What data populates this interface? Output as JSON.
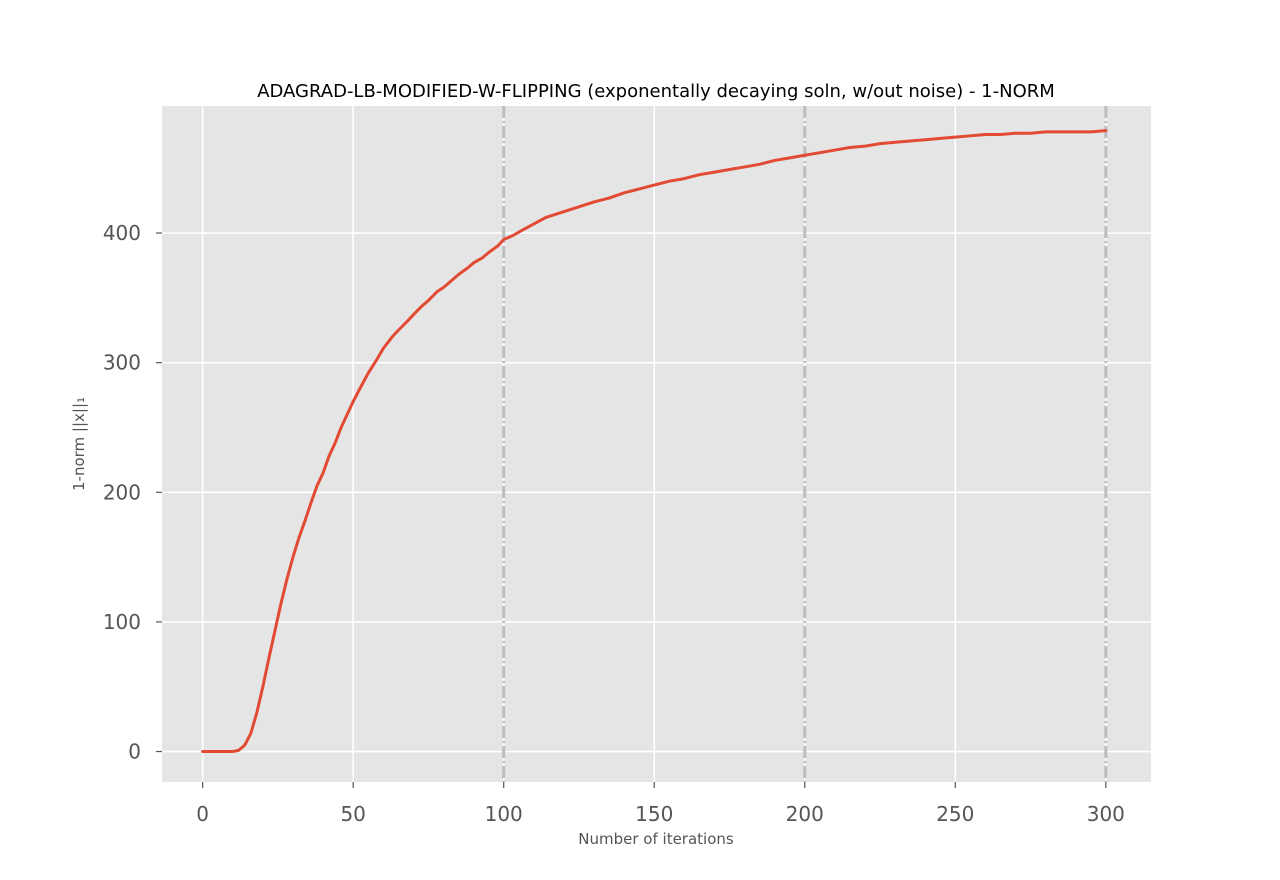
{
  "colors": {
    "plot_background": "#e5e5e5",
    "grid": "#ffffff",
    "series_line": "#e24a33",
    "vline": "#bdbdbd",
    "tick": "#555555"
  },
  "chart_data": {
    "type": "line",
    "title": "ADAGRAD-LB-MODIFIED-W-FLIPPING (exponentally decaying soln, w/out noise) - 1-NORM",
    "xlabel": "Number of iterations",
    "ylabel": "1-norm ||x||₁",
    "xlim": [
      -13.5,
      315
    ],
    "ylim": [
      -23.5,
      498
    ],
    "xticks": [
      0,
      50,
      100,
      150,
      200,
      250,
      300
    ],
    "xtick_labels": [
      "0",
      "50",
      "100",
      "150",
      "200",
      "250",
      "300"
    ],
    "yticks": [
      0,
      100,
      200,
      300,
      400
    ],
    "ytick_labels": [
      "0",
      "100",
      "200",
      "300",
      "400"
    ],
    "grid": true,
    "vertical_lines": [
      100,
      200,
      300
    ],
    "series": [
      {
        "x": [
          0,
          5,
          10,
          12,
          14,
          16,
          18,
          20,
          22,
          24,
          26,
          28,
          30,
          32,
          34,
          36,
          38,
          40,
          42,
          44,
          46,
          48,
          50,
          52,
          55,
          58,
          60,
          63,
          65,
          68,
          70,
          73,
          75,
          78,
          80,
          83,
          85,
          88,
          90,
          93,
          95,
          98,
          100,
          103,
          106,
          110,
          114,
          118,
          122,
          126,
          130,
          135,
          140,
          145,
          150,
          155,
          160,
          165,
          170,
          175,
          180,
          185,
          190,
          195,
          200,
          205,
          210,
          215,
          220,
          225,
          230,
          235,
          240,
          245,
          250,
          255,
          260,
          265,
          270,
          275,
          280,
          285,
          290,
          295,
          300
        ],
        "values": [
          0,
          0,
          0,
          1,
          5,
          14,
          30,
          50,
          72,
          93,
          114,
          133,
          150,
          165,
          178,
          192,
          205,
          215,
          228,
          238,
          250,
          260,
          270,
          279,
          292,
          303,
          311,
          320,
          325,
          332,
          337,
          344,
          348,
          355,
          358,
          364,
          368,
          373,
          377,
          381,
          385,
          390,
          395,
          398,
          402,
          407,
          412,
          415,
          418,
          421,
          424,
          427,
          431,
          434,
          437,
          440,
          442,
          445,
          447,
          449,
          451,
          453,
          456,
          458,
          460,
          462,
          464,
          466,
          467,
          469,
          470,
          471,
          472,
          473,
          474,
          475,
          476,
          476,
          477,
          477,
          478,
          478,
          478,
          478,
          479
        ]
      }
    ]
  }
}
